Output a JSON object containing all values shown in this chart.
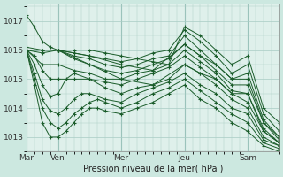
{
  "background_color": "#cce8e0",
  "plot_bg_color": "#dff0eb",
  "grid_color": "#a8ccc4",
  "line_color": "#1a5c2a",
  "xlabel": "Pression niveau de la mer( hPa )",
  "yticks": [
    1013,
    1014,
    1015,
    1016,
    1017
  ],
  "ylim": [
    1012.5,
    1017.6
  ],
  "xlim": [
    0,
    96
  ],
  "day_labels": [
    "Mar",
    "Ven",
    "Mer",
    "Jeu",
    "Sam"
  ],
  "day_positions": [
    0,
    12,
    36,
    60,
    84
  ],
  "series": [
    [
      0,
      1017.2,
      3,
      1016.8,
      6,
      1016.3,
      9,
      1016.1,
      12,
      1016.0,
      18,
      1016.0,
      24,
      1016.0,
      30,
      1015.9,
      36,
      1015.8,
      42,
      1015.7,
      48,
      1015.6,
      54,
      1015.5,
      60,
      1016.8,
      66,
      1016.5,
      72,
      1016.0,
      78,
      1015.5,
      84,
      1015.8,
      90,
      1014.0,
      96,
      1013.5
    ],
    [
      0,
      1016.1,
      6,
      1016.0,
      12,
      1016.0,
      18,
      1015.9,
      24,
      1015.8,
      30,
      1015.7,
      36,
      1015.6,
      42,
      1015.7,
      48,
      1015.9,
      54,
      1016.0,
      60,
      1016.7,
      66,
      1016.3,
      72,
      1015.8,
      78,
      1015.2,
      84,
      1015.5,
      90,
      1013.8,
      96,
      1013.2
    ],
    [
      0,
      1016.0,
      6,
      1016.0,
      12,
      1016.0,
      18,
      1015.8,
      24,
      1015.7,
      30,
      1015.5,
      36,
      1015.4,
      42,
      1015.5,
      48,
      1015.7,
      54,
      1015.8,
      60,
      1016.5,
      66,
      1016.0,
      72,
      1015.5,
      78,
      1015.0,
      84,
      1015.2,
      90,
      1013.6,
      96,
      1013.0
    ],
    [
      0,
      1016.0,
      6,
      1015.9,
      12,
      1016.0,
      18,
      1015.7,
      24,
      1015.5,
      30,
      1015.3,
      36,
      1015.2,
      42,
      1015.3,
      48,
      1015.5,
      54,
      1015.7,
      60,
      1016.2,
      66,
      1015.8,
      72,
      1015.3,
      78,
      1014.8,
      84,
      1014.8,
      90,
      1013.5,
      96,
      1012.9
    ],
    [
      0,
      1016.0,
      6,
      1015.5,
      12,
      1015.5,
      18,
      1015.3,
      24,
      1015.2,
      30,
      1015.0,
      36,
      1015.0,
      42,
      1015.2,
      48,
      1015.3,
      54,
      1015.5,
      60,
      1016.0,
      66,
      1015.6,
      72,
      1015.2,
      78,
      1014.6,
      84,
      1014.5,
      90,
      1013.3,
      96,
      1012.8
    ],
    [
      0,
      1016.0,
      3,
      1015.8,
      6,
      1015.3,
      9,
      1015.0,
      12,
      1015.0,
      18,
      1015.0,
      24,
      1015.0,
      30,
      1014.9,
      36,
      1014.8,
      42,
      1015.0,
      48,
      1015.2,
      54,
      1015.4,
      60,
      1015.8,
      66,
      1015.4,
      72,
      1015.0,
      78,
      1014.5,
      84,
      1014.2,
      90,
      1013.2,
      96,
      1012.8
    ],
    [
      0,
      1016.0,
      3,
      1015.5,
      6,
      1014.8,
      9,
      1014.4,
      12,
      1014.5,
      15,
      1015.0,
      18,
      1015.2,
      24,
      1015.0,
      30,
      1014.7,
      36,
      1014.5,
      42,
      1014.7,
      48,
      1014.8,
      54,
      1015.0,
      60,
      1015.5,
      66,
      1015.2,
      72,
      1014.8,
      78,
      1014.3,
      84,
      1014.0,
      90,
      1013.0,
      96,
      1012.7
    ],
    [
      0,
      1016.0,
      3,
      1015.2,
      6,
      1014.3,
      9,
      1013.9,
      12,
      1013.8,
      15,
      1014.0,
      18,
      1014.3,
      21,
      1014.5,
      24,
      1014.5,
      30,
      1014.3,
      36,
      1014.2,
      42,
      1014.5,
      48,
      1014.7,
      54,
      1014.9,
      60,
      1015.2,
      66,
      1014.8,
      72,
      1014.5,
      78,
      1014.0,
      84,
      1013.8,
      90,
      1012.9,
      96,
      1012.7
    ],
    [
      0,
      1016.0,
      3,
      1015.0,
      6,
      1014.0,
      9,
      1013.5,
      12,
      1013.3,
      15,
      1013.5,
      18,
      1013.8,
      21,
      1014.0,
      24,
      1014.2,
      27,
      1014.3,
      30,
      1014.2,
      36,
      1014.0,
      42,
      1014.2,
      48,
      1014.5,
      54,
      1014.7,
      60,
      1015.0,
      66,
      1014.6,
      72,
      1014.2,
      78,
      1013.8,
      84,
      1013.5,
      90,
      1012.8,
      96,
      1012.6
    ],
    [
      0,
      1016.0,
      3,
      1014.8,
      6,
      1013.5,
      9,
      1013.0,
      12,
      1013.0,
      15,
      1013.2,
      18,
      1013.5,
      21,
      1013.8,
      24,
      1014.0,
      27,
      1014.0,
      30,
      1013.9,
      36,
      1013.8,
      42,
      1014.0,
      48,
      1014.2,
      54,
      1014.5,
      60,
      1014.8,
      66,
      1014.3,
      72,
      1014.0,
      78,
      1013.5,
      84,
      1013.2,
      90,
      1012.7,
      96,
      1012.5
    ],
    [
      0,
      1016.0,
      12,
      1016.0,
      24,
      1015.8,
      36,
      1015.5,
      48,
      1015.3,
      60,
      1016.2,
      66,
      1015.8,
      72,
      1015.5,
      78,
      1015.0,
      84,
      1015.0,
      90,
      1013.5,
      96,
      1013.0
    ],
    [
      0,
      1016.0,
      12,
      1016.0,
      24,
      1015.5,
      36,
      1015.0,
      48,
      1014.8,
      60,
      1015.5,
      66,
      1015.2,
      72,
      1015.0,
      78,
      1014.5,
      84,
      1014.5,
      90,
      1013.2,
      96,
      1012.8
    ]
  ]
}
